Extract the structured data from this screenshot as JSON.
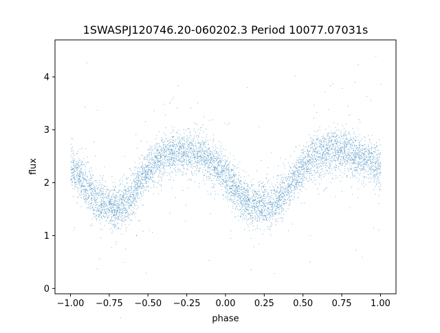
{
  "chart_data": {
    "type": "scatter",
    "title": "1SWASPJ120746.20-060202.3 Period 10077.07031s",
    "xlabel": "phase",
    "ylabel": "flux",
    "xlim": [
      -1.1,
      1.1
    ],
    "ylim": [
      -0.1,
      4.7
    ],
    "xticks": [
      -1.0,
      -0.75,
      -0.5,
      -0.25,
      0.0,
      0.25,
      0.5,
      0.75,
      1.0
    ],
    "xtick_labels": [
      "−1.00",
      "−0.75",
      "−0.50",
      "−0.25",
      "0.00",
      "0.25",
      "0.50",
      "0.75",
      "1.00"
    ],
    "yticks": [
      0,
      1,
      2,
      3,
      4
    ],
    "ytick_labels": [
      "0",
      "1",
      "2",
      "3",
      "4"
    ],
    "grid": false,
    "marker_color": "#1f77b4",
    "series": [
      {
        "x": [
          -1.0,
          -0.95,
          -0.9,
          -0.85,
          -0.8,
          -0.75,
          -0.7,
          -0.65,
          -0.6,
          -0.55,
          -0.5,
          -0.45,
          -0.4,
          -0.35,
          -0.3,
          -0.25,
          -0.2,
          -0.15,
          -0.1,
          -0.05,
          0.0,
          0.05,
          0.1,
          0.15,
          0.2,
          0.25,
          0.3,
          0.35,
          0.4,
          0.45,
          0.5,
          0.55,
          0.6,
          0.65,
          0.7,
          0.75,
          0.8,
          0.85,
          0.9,
          0.95,
          1.0
        ],
        "y": [
          2.3,
          2.15,
          1.95,
          1.75,
          1.62,
          1.56,
          1.55,
          1.62,
          1.8,
          2.05,
          2.25,
          2.4,
          2.5,
          2.57,
          2.6,
          2.6,
          2.58,
          2.52,
          2.42,
          2.28,
          2.12,
          1.92,
          1.75,
          1.62,
          1.56,
          1.55,
          1.58,
          1.7,
          1.9,
          2.12,
          2.3,
          2.43,
          2.52,
          2.58,
          2.6,
          2.6,
          2.58,
          2.52,
          2.45,
          2.38,
          2.3
        ]
      }
    ]
  }
}
